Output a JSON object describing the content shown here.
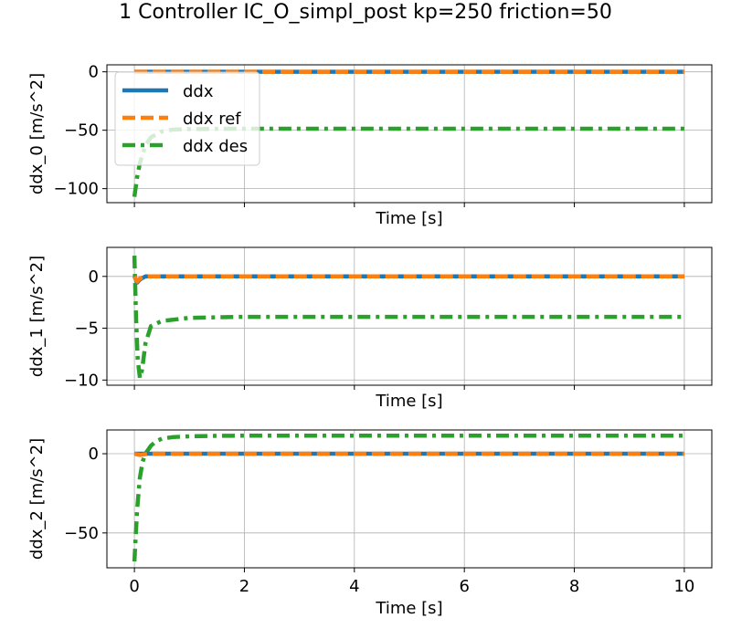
{
  "title": "1 Controller IC_O_simpl_post kp=250 friction=50",
  "colors": {
    "ddx": "#1f77b4",
    "ddx_ref": "#ff7f0e",
    "ddx_des": "#2ca02c",
    "grid": "#b0b0b0"
  },
  "chart_data": [
    {
      "type": "line",
      "xlabel": "Time [s]",
      "ylabel": "ddx_0 [m/s^2]",
      "xlim": [
        -0.5,
        10.5
      ],
      "ylim": [
        -112,
        6
      ],
      "xticks": [
        0,
        2,
        4,
        6,
        8,
        10
      ],
      "yticks": [
        0,
        -50,
        -100
      ],
      "ytick_labels": [
        "0",
        "−50",
        "−100"
      ],
      "show_xtick_labels": false,
      "grid": true,
      "legend": {
        "placement": "upper-left",
        "entries": [
          "ddx",
          "ddx ref",
          "ddx des"
        ]
      },
      "series": [
        {
          "name": "ddx",
          "style": "solid",
          "x": [
            0,
            10
          ],
          "y": [
            0,
            0
          ]
        },
        {
          "name": "ddx ref",
          "style": "dashed",
          "x": [
            0,
            10
          ],
          "y": [
            0,
            0
          ]
        },
        {
          "name": "ddx des",
          "style": "dashdot",
          "x": [
            0,
            0.05,
            0.1,
            0.2,
            0.3,
            0.5,
            0.7,
            1.0,
            1.5,
            2,
            4,
            6,
            8,
            10
          ],
          "y": [
            -107,
            -90,
            -78,
            -63,
            -56,
            -51,
            -49.5,
            -49,
            -48.8,
            -48.7,
            -48.7,
            -48.7,
            -48.7,
            -48.7
          ]
        }
      ]
    },
    {
      "type": "line",
      "xlabel": "Time [s]",
      "ylabel": "ddx_1 [m/s^2]",
      "xlim": [
        -0.5,
        10.5
      ],
      "ylim": [
        -10.5,
        2.8
      ],
      "xticks": [
        0,
        2,
        4,
        6,
        8,
        10
      ],
      "yticks": [
        0,
        -5,
        -10
      ],
      "ytick_labels": [
        "0",
        "−5",
        "−10"
      ],
      "show_xtick_labels": false,
      "grid": true,
      "series": [
        {
          "name": "ddx",
          "style": "solid",
          "x": [
            0,
            0.05,
            0.1,
            0.2,
            0.3,
            10
          ],
          "y": [
            0,
            -0.6,
            -0.3,
            0.0,
            0.0,
            0
          ]
        },
        {
          "name": "ddx ref",
          "style": "dashed",
          "x": [
            0,
            0.05,
            0.1,
            0.2,
            0.3,
            10
          ],
          "y": [
            0,
            -0.5,
            -0.2,
            0.0,
            0.0,
            0
          ]
        },
        {
          "name": "ddx des",
          "style": "dashdot",
          "x": [
            0,
            0.03,
            0.06,
            0.1,
            0.14,
            0.2,
            0.3,
            0.5,
            1.0,
            2,
            4,
            6,
            8,
            10
          ],
          "y": [
            2.0,
            -4.0,
            -8.0,
            -9.8,
            -9.0,
            -6.5,
            -4.8,
            -4.3,
            -4.0,
            -3.9,
            -3.9,
            -3.9,
            -3.9,
            -3.9
          ]
        }
      ]
    },
    {
      "type": "line",
      "xlabel": "Time [s]",
      "ylabel": "ddx_2 [m/s^2]",
      "xlim": [
        -0.5,
        10.5
      ],
      "ylim": [
        -72,
        15
      ],
      "xticks": [
        0,
        2,
        4,
        6,
        8,
        10
      ],
      "xtick_labels": [
        "0",
        "2",
        "4",
        "6",
        "8",
        "10"
      ],
      "yticks": [
        0,
        -50
      ],
      "ytick_labels": [
        "0",
        "−50"
      ],
      "show_xtick_labels": true,
      "grid": true,
      "series": [
        {
          "name": "ddx",
          "style": "solid",
          "x": [
            0,
            10
          ],
          "y": [
            0,
            0
          ]
        },
        {
          "name": "ddx ref",
          "style": "dashed",
          "x": [
            0,
            0.1,
            0.2,
            0.3,
            10
          ],
          "y": [
            0,
            -0.8,
            -0.3,
            0,
            0
          ]
        },
        {
          "name": "ddx des",
          "style": "dashdot",
          "x": [
            0,
            0.05,
            0.1,
            0.15,
            0.2,
            0.3,
            0.4,
            0.5,
            0.7,
            1.0,
            1.5,
            2,
            4,
            6,
            8,
            10
          ],
          "y": [
            -68,
            -35,
            -15,
            -5,
            0,
            5,
            8,
            9.5,
            10.5,
            11,
            11.3,
            11.4,
            11.4,
            11.4,
            11.4,
            11.4
          ]
        }
      ]
    }
  ]
}
